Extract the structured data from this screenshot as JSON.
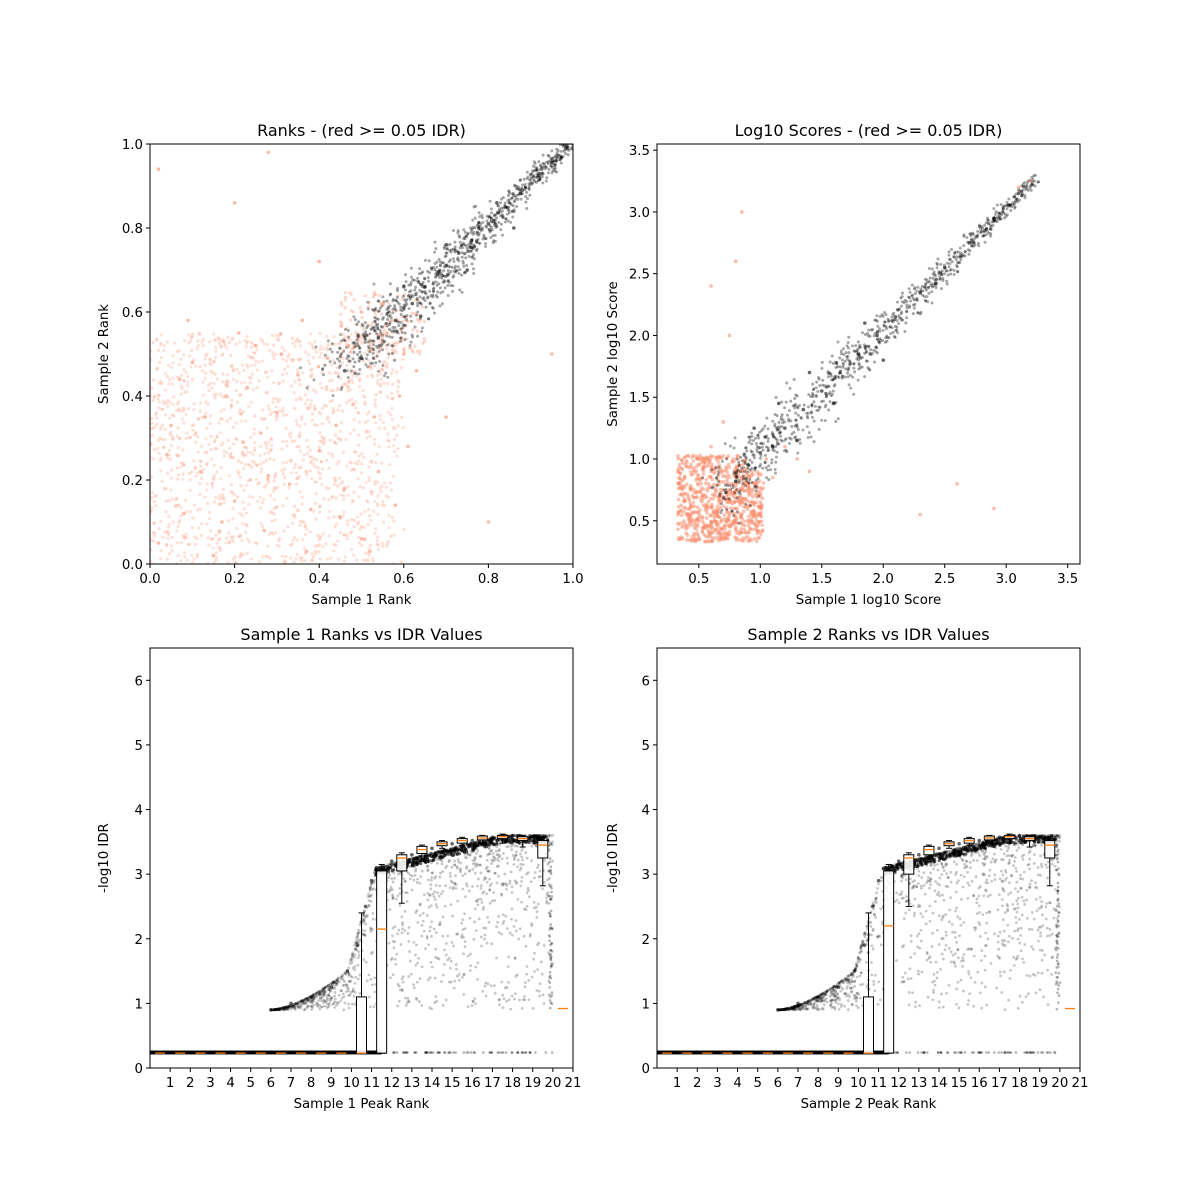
{
  "chart_data": [
    {
      "type": "scatter",
      "title": "Ranks - (red >= 0.05 IDR)",
      "xlabel": "Sample 1 Rank",
      "ylabel": "Sample 2 Rank",
      "xlim": [
        0.0,
        1.0
      ],
      "ylim": [
        0.0,
        1.0
      ],
      "xticks": [
        "0.0",
        "0.2",
        "0.4",
        "0.6",
        "0.8",
        "1.0"
      ],
      "yticks": [
        "0.0",
        "0.2",
        "0.4",
        "0.6",
        "0.8",
        "1.0"
      ],
      "grid": false,
      "series": [
        {
          "color": "#fa9070",
          "note_points": "dense low-IDR cloud",
          "points": [
            [
              0.02,
              0.05
            ],
            [
              0.05,
              0.33
            ],
            [
              0.08,
              0.12
            ],
            [
              0.1,
              0.48
            ],
            [
              0.12,
              0.22
            ],
            [
              0.15,
              0.02
            ],
            [
              0.18,
              0.4
            ],
            [
              0.2,
              0.15
            ],
            [
              0.22,
              0.29
            ],
            [
              0.25,
              0.52
            ],
            [
              0.27,
              0.08
            ],
            [
              0.3,
              0.36
            ],
            [
              0.33,
              0.19
            ],
            [
              0.35,
              0.45
            ],
            [
              0.37,
              0.03
            ],
            [
              0.4,
              0.27
            ],
            [
              0.42,
              0.49
            ],
            [
              0.45,
              0.11
            ],
            [
              0.48,
              0.38
            ],
            [
              0.5,
              0.06
            ],
            [
              0.52,
              0.47
            ],
            [
              0.54,
              0.22
            ],
            [
              0.56,
              0.55
            ],
            [
              0.58,
              0.14
            ],
            [
              0.6,
              0.5
            ],
            [
              0.04,
              0.26
            ],
            [
              0.07,
              0.44
            ],
            [
              0.13,
              0.35
            ],
            [
              0.17,
              0.1
            ],
            [
              0.23,
              0.42
            ],
            [
              0.28,
              0.21
            ],
            [
              0.31,
              0.5
            ],
            [
              0.38,
              0.13
            ],
            [
              0.44,
              0.33
            ],
            [
              0.47,
              0.52
            ],
            [
              0.53,
              0.35
            ],
            [
              0.57,
              0.58
            ],
            [
              0.59,
              0.4
            ],
            [
              0.09,
              0.58
            ],
            [
              0.21,
              0.55
            ],
            [
              0.36,
              0.58
            ],
            [
              0.61,
              0.28
            ],
            [
              0.63,
              0.46
            ],
            [
              0.5,
              0.6
            ],
            [
              0.55,
              0.62
            ],
            [
              0.52,
              0.03
            ],
            [
              0.46,
              0.18
            ],
            [
              0.2,
              0.86
            ],
            [
              0.02,
              0.94
            ],
            [
              0.28,
              0.98
            ],
            [
              0.8,
              0.1
            ],
            [
              0.95,
              0.5
            ],
            [
              0.4,
              0.72
            ],
            [
              0.7,
              0.35
            ]
          ]
        },
        {
          "color": "#000000",
          "points": [
            [
              0.46,
              0.46
            ],
            [
              0.5,
              0.49
            ],
            [
              0.54,
              0.54
            ],
            [
              0.58,
              0.58
            ],
            [
              0.6,
              0.61
            ],
            [
              0.62,
              0.62
            ],
            [
              0.65,
              0.66
            ],
            [
              0.68,
              0.69
            ],
            [
              0.7,
              0.71
            ],
            [
              0.73,
              0.74
            ],
            [
              0.76,
              0.77
            ],
            [
              0.8,
              0.81
            ],
            [
              0.84,
              0.85
            ],
            [
              0.88,
              0.89
            ],
            [
              0.92,
              0.93
            ],
            [
              0.96,
              0.96
            ],
            [
              1.0,
              1.0
            ],
            [
              0.6,
              0.66
            ],
            [
              0.64,
              0.59
            ],
            [
              0.7,
              0.76
            ],
            [
              0.75,
              0.7
            ],
            [
              0.82,
              0.86
            ],
            [
              0.86,
              0.8
            ]
          ]
        }
      ]
    },
    {
      "type": "scatter",
      "title": "Log10 Scores - (red >= 0.05 IDR)",
      "xlabel": "Sample 1 log10 Score",
      "ylabel": "Sample 2 log10 Score",
      "xlim": [
        0.16,
        3.6
      ],
      "ylim": [
        0.15,
        3.55
      ],
      "xticks": [
        "0.5",
        "1.0",
        "1.5",
        "2.0",
        "2.5",
        "3.0",
        "3.5"
      ],
      "yticks": [
        "0.5",
        "1.0",
        "1.5",
        "2.0",
        "2.5",
        "3.0",
        "3.5"
      ],
      "grid": false,
      "series": [
        {
          "color": "#fa9070",
          "points": [
            [
              0.35,
              0.35
            ],
            [
              0.45,
              0.7
            ],
            [
              0.55,
              0.45
            ],
            [
              0.6,
              0.9
            ],
            [
              0.65,
              0.55
            ],
            [
              0.7,
              0.4
            ],
            [
              0.75,
              0.75
            ],
            [
              0.8,
              0.6
            ],
            [
              0.85,
              0.95
            ],
            [
              0.9,
              0.5
            ],
            [
              0.95,
              0.8
            ],
            [
              1.0,
              0.65
            ],
            [
              1.05,
              1.0
            ],
            [
              1.1,
              0.85
            ],
            [
              1.2,
              1.1
            ],
            [
              1.3,
              1.0
            ],
            [
              0.4,
              0.55
            ],
            [
              0.5,
              0.35
            ],
            [
              0.6,
              1.1
            ],
            [
              0.7,
              1.3
            ],
            [
              0.75,
              2.0
            ],
            [
              0.8,
              2.6
            ],
            [
              0.85,
              3.0
            ],
            [
              0.6,
              2.4
            ],
            [
              1.4,
              0.9
            ],
            [
              2.3,
              0.55
            ],
            [
              2.6,
              0.8
            ],
            [
              2.9,
              0.6
            ],
            [
              3.2,
              3.25
            ],
            [
              3.1,
              3.2
            ]
          ]
        },
        {
          "color": "#000000",
          "points": [
            [
              0.72,
              0.73
            ],
            [
              0.8,
              0.82
            ],
            [
              0.9,
              0.95
            ],
            [
              1.0,
              1.05
            ],
            [
              1.1,
              1.1
            ],
            [
              1.2,
              1.25
            ],
            [
              1.35,
              1.4
            ],
            [
              1.5,
              1.55
            ],
            [
              1.65,
              1.7
            ],
            [
              1.8,
              1.85
            ],
            [
              1.95,
              2.0
            ],
            [
              2.1,
              2.15
            ],
            [
              2.3,
              2.35
            ],
            [
              2.5,
              2.55
            ],
            [
              2.7,
              2.75
            ],
            [
              2.9,
              2.95
            ],
            [
              3.1,
              3.15
            ],
            [
              0.95,
              1.25
            ],
            [
              1.15,
              1.45
            ],
            [
              1.3,
              1.15
            ],
            [
              1.6,
              1.45
            ],
            [
              1.4,
              1.7
            ],
            [
              2.0,
              1.8
            ],
            [
              1.85,
              2.1
            ]
          ]
        }
      ]
    },
    {
      "type": "scatter",
      "title": "Sample 1 Ranks vs IDR Values",
      "xlabel": "Sample 1 Peak Rank",
      "ylabel": "-log10 IDR",
      "xlim": [
        0.0,
        21.0
      ],
      "ylim": [
        0.0,
        6.5
      ],
      "xticks": [
        "1",
        "2",
        "3",
        "4",
        "5",
        "6",
        "7",
        "8",
        "9",
        "10",
        "11",
        "12",
        "13",
        "14",
        "15",
        "16",
        "17",
        "18",
        "19",
        "20",
        "21"
      ],
      "yticks": [
        "0",
        "1",
        "2",
        "3",
        "4",
        "5",
        "6"
      ],
      "grid": false,
      "series": [
        {
          "color": "#000000",
          "curve_points": [
            [
              6.0,
              0.9
            ],
            [
              7.0,
              1.0
            ],
            [
              8.0,
              1.1
            ],
            [
              9.0,
              1.25
            ],
            [
              9.8,
              1.5
            ],
            [
              10.3,
              1.9
            ],
            [
              10.7,
              2.5
            ],
            [
              11.0,
              2.9
            ],
            [
              11.4,
              3.1
            ],
            [
              12.0,
              3.2
            ],
            [
              13.0,
              3.3
            ],
            [
              14.0,
              3.4
            ],
            [
              15.0,
              3.47
            ],
            [
              16.0,
              3.52
            ],
            [
              17.0,
              3.57
            ],
            [
              18.0,
              3.6
            ],
            [
              19.0,
              3.58
            ],
            [
              19.6,
              3.5
            ]
          ],
          "baseline_points": [
            [
              0.0,
              0.24
            ],
            [
              11.5,
              0.24
            ],
            [
              20.0,
              0.24
            ]
          ]
        }
      ],
      "boxes": [
        {
          "pos": 1,
          "median": 0.23
        },
        {
          "pos": 2,
          "median": 0.23
        },
        {
          "pos": 3,
          "median": 0.23
        },
        {
          "pos": 4,
          "median": 0.23
        },
        {
          "pos": 5,
          "median": 0.23
        },
        {
          "pos": 6,
          "median": 0.23
        },
        {
          "pos": 7,
          "median": 0.23
        },
        {
          "pos": 8,
          "median": 0.23
        },
        {
          "pos": 9,
          "median": 0.23
        },
        {
          "pos": 10,
          "median": 0.23
        },
        {
          "pos": 11,
          "q1": 0.23,
          "median": 0.23,
          "q3": 1.1,
          "lo": 0.23,
          "hi": 2.4
        },
        {
          "pos": 12,
          "q1": 0.23,
          "median": 2.15,
          "q3": 3.05,
          "lo": 0.23,
          "hi": 3.15
        },
        {
          "pos": 13,
          "q1": 3.05,
          "median": 3.25,
          "q3": 3.3,
          "lo": 2.55,
          "hi": 3.33
        },
        {
          "pos": 14,
          "q1": 3.32,
          "median": 3.38,
          "q3": 3.43,
          "lo": 3.2,
          "hi": 3.45
        },
        {
          "pos": 15,
          "q1": 3.44,
          "median": 3.47,
          "q3": 3.5,
          "lo": 3.4,
          "hi": 3.52
        },
        {
          "pos": 16,
          "q1": 3.48,
          "median": 3.52,
          "q3": 3.55,
          "lo": 3.45,
          "hi": 3.57
        },
        {
          "pos": 17,
          "q1": 3.53,
          "median": 3.56,
          "q3": 3.59,
          "lo": 3.48,
          "hi": 3.6
        },
        {
          "pos": 18,
          "q1": 3.55,
          "median": 3.58,
          "q3": 3.6,
          "lo": 3.48,
          "hi": 3.62
        },
        {
          "pos": 19,
          "q1": 3.52,
          "median": 3.55,
          "q3": 3.58,
          "lo": 3.42,
          "hi": 3.6
        },
        {
          "pos": 20,
          "q1": 3.25,
          "median": 3.45,
          "q3": 3.52,
          "lo": 2.82,
          "hi": 3.58
        },
        {
          "pos": 21,
          "median": 0.92
        }
      ]
    },
    {
      "type": "scatter",
      "title": "Sample 2 Ranks vs IDR Values",
      "xlabel": "Sample 2 Peak Rank",
      "ylabel": "-log10 IDR",
      "xlim": [
        0.0,
        21.0
      ],
      "ylim": [
        0.0,
        6.5
      ],
      "xticks": [
        "1",
        "2",
        "3",
        "4",
        "5",
        "6",
        "7",
        "8",
        "9",
        "10",
        "11",
        "12",
        "13",
        "14",
        "15",
        "16",
        "17",
        "18",
        "19",
        "20",
        "21"
      ],
      "yticks": [
        "0",
        "1",
        "2",
        "3",
        "4",
        "5",
        "6"
      ],
      "grid": false,
      "series": [
        {
          "color": "#000000",
          "curve_points": [
            [
              6.0,
              0.9
            ],
            [
              7.0,
              1.0
            ],
            [
              8.0,
              1.1
            ],
            [
              9.0,
              1.25
            ],
            [
              9.8,
              1.5
            ],
            [
              10.3,
              1.9
            ],
            [
              10.7,
              2.5
            ],
            [
              11.0,
              2.9
            ],
            [
              11.4,
              3.1
            ],
            [
              12.0,
              3.2
            ],
            [
              13.0,
              3.3
            ],
            [
              14.0,
              3.4
            ],
            [
              15.0,
              3.47
            ],
            [
              16.0,
              3.52
            ],
            [
              17.0,
              3.57
            ],
            [
              18.0,
              3.6
            ],
            [
              19.0,
              3.58
            ],
            [
              19.6,
              3.5
            ]
          ],
          "baseline_points": [
            [
              0.0,
              0.24
            ],
            [
              11.5,
              0.24
            ],
            [
              20.0,
              0.24
            ]
          ]
        }
      ],
      "boxes": [
        {
          "pos": 1,
          "median": 0.23
        },
        {
          "pos": 2,
          "median": 0.23
        },
        {
          "pos": 3,
          "median": 0.23
        },
        {
          "pos": 4,
          "median": 0.23
        },
        {
          "pos": 5,
          "median": 0.23
        },
        {
          "pos": 6,
          "median": 0.23
        },
        {
          "pos": 7,
          "median": 0.23
        },
        {
          "pos": 8,
          "median": 0.23
        },
        {
          "pos": 9,
          "median": 0.23
        },
        {
          "pos": 10,
          "median": 0.23
        },
        {
          "pos": 11,
          "q1": 0.23,
          "median": 0.23,
          "q3": 1.1,
          "lo": 0.23,
          "hi": 2.4
        },
        {
          "pos": 12,
          "q1": 0.23,
          "median": 2.2,
          "q3": 3.05,
          "lo": 0.23,
          "hi": 3.15
        },
        {
          "pos": 13,
          "q1": 3.0,
          "median": 3.25,
          "q3": 3.3,
          "lo": 2.5,
          "hi": 3.33
        },
        {
          "pos": 14,
          "q1": 3.3,
          "median": 3.38,
          "q3": 3.43,
          "lo": 3.2,
          "hi": 3.45
        },
        {
          "pos": 15,
          "q1": 3.44,
          "median": 3.47,
          "q3": 3.5,
          "lo": 3.4,
          "hi": 3.52
        },
        {
          "pos": 16,
          "q1": 3.48,
          "median": 3.52,
          "q3": 3.55,
          "lo": 3.45,
          "hi": 3.57
        },
        {
          "pos": 17,
          "q1": 3.53,
          "median": 3.56,
          "q3": 3.59,
          "lo": 3.48,
          "hi": 3.6
        },
        {
          "pos": 18,
          "q1": 3.55,
          "median": 3.58,
          "q3": 3.6,
          "lo": 3.48,
          "hi": 3.62
        },
        {
          "pos": 19,
          "q1": 3.52,
          "median": 3.55,
          "q3": 3.58,
          "lo": 3.42,
          "hi": 3.6
        },
        {
          "pos": 20,
          "q1": 3.25,
          "median": 3.45,
          "q3": 3.52,
          "lo": 2.82,
          "hi": 3.58
        },
        {
          "pos": 21,
          "median": 0.92
        }
      ]
    }
  ]
}
